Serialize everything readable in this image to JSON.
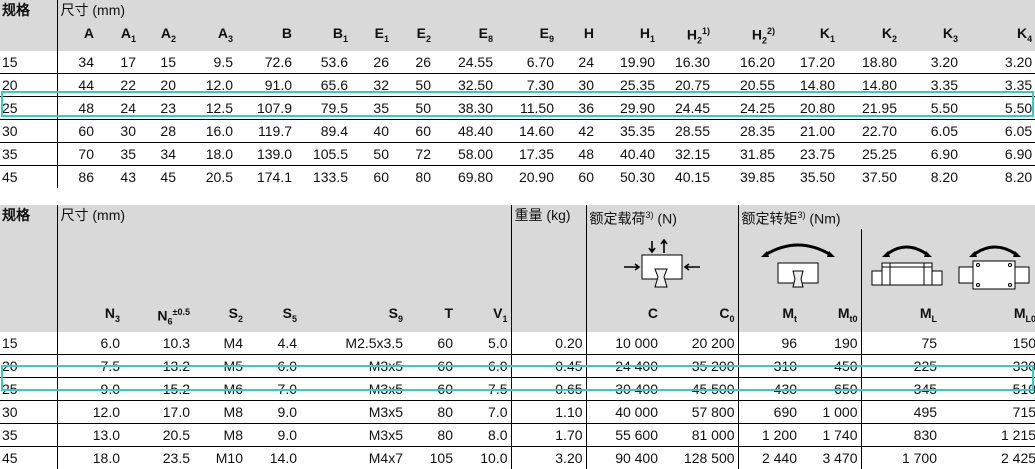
{
  "table1": {
    "size_label": "规格",
    "dim_label": "尺寸 (mm)",
    "columns": [
      "A",
      "A",
      "A",
      "A",
      "B",
      "B",
      "E",
      "E",
      "E",
      "E",
      "H",
      "H",
      "H",
      "H",
      "K",
      "K",
      "K",
      "K"
    ],
    "column_subs": [
      "",
      "1",
      "2",
      "3",
      "",
      "1",
      "1",
      "2",
      "8",
      "9",
      "",
      "1",
      "2",
      "2",
      "1",
      "2",
      "3",
      "4"
    ],
    "column_sups": [
      "",
      "",
      "",
      "",
      "",
      "",
      "",
      "",
      "",
      "",
      "",
      "",
      "1)",
      "2)",
      "",
      "",
      "",
      ""
    ],
    "rows": [
      [
        "15",
        "34",
        "17",
        "15",
        "9.5",
        "72.6",
        "53.6",
        "26",
        "26",
        "24.55",
        "6.70",
        "24",
        "19.90",
        "16.30",
        "16.20",
        "17.20",
        "18.80",
        "3.20",
        "3.20"
      ],
      [
        "20",
        "44",
        "22",
        "20",
        "12.0",
        "91.0",
        "65.6",
        "32",
        "50",
        "32.50",
        "7.30",
        "30",
        "25.35",
        "20.75",
        "20.55",
        "14.80",
        "14.80",
        "3.35",
        "3.35"
      ],
      [
        "25",
        "48",
        "24",
        "23",
        "12.5",
        "107.9",
        "79.5",
        "35",
        "50",
        "38.30",
        "11.50",
        "36",
        "29.90",
        "24.45",
        "24.25",
        "20.80",
        "21.95",
        "5.50",
        "5.50"
      ],
      [
        "30",
        "60",
        "30",
        "28",
        "16.0",
        "119.7",
        "89.4",
        "40",
        "60",
        "48.40",
        "14.60",
        "42",
        "35.35",
        "28.55",
        "28.35",
        "21.00",
        "22.70",
        "6.05",
        "6.05"
      ],
      [
        "35",
        "70",
        "35",
        "34",
        "18.0",
        "139.0",
        "105.5",
        "50",
        "72",
        "58.00",
        "17.35",
        "48",
        "40.40",
        "32.15",
        "31.85",
        "23.75",
        "25.25",
        "6.90",
        "6.90"
      ],
      [
        "45",
        "86",
        "43",
        "45",
        "20.5",
        "174.1",
        "133.5",
        "60",
        "80",
        "69.80",
        "20.90",
        "60",
        "50.30",
        "40.15",
        "39.85",
        "35.50",
        "37.50",
        "8.20",
        "8.20"
      ]
    ]
  },
  "table2": {
    "size_label": "规格",
    "dim_label": "尺寸 (mm)",
    "weight_label": "重量 (kg)",
    "load_label": "额定载荷",
    "load_unit": "(N)",
    "moment_label": "额定转矩",
    "moment_unit": "(Nm)",
    "footnote": "3)",
    "columns": [
      "N",
      "N",
      "S",
      "S",
      "S",
      "T",
      "V",
      "",
      "C",
      "C",
      "M",
      "M",
      "M",
      "M"
    ],
    "column_subs": [
      "3",
      "6",
      "2",
      "5",
      "9",
      "",
      "1",
      "",
      "",
      "0",
      "t",
      "t0",
      "L",
      "L0"
    ],
    "column_sups": [
      "",
      "±0.5",
      "",
      "",
      "",
      "",
      "",
      "",
      "",
      "",
      "",
      "",
      "",
      ""
    ],
    "rows": [
      [
        "15",
        "6.0",
        "10.3",
        "M4",
        "4.4",
        "M2.5x3.5",
        "60",
        "5.0",
        "0.20",
        "10 000",
        "20 200",
        "96",
        "190",
        "75",
        "150"
      ],
      [
        "20",
        "7.5",
        "13.2",
        "M5",
        "6.0",
        "M3x5",
        "60",
        "6.0",
        "0.45",
        "24 400",
        "35 200",
        "310",
        "450",
        "225",
        "330"
      ],
      [
        "25",
        "9.0",
        "15.2",
        "M6",
        "7.0",
        "M3x5",
        "60",
        "7.5",
        "0.65",
        "30 400",
        "45 500",
        "430",
        "650",
        "345",
        "510"
      ],
      [
        "30",
        "12.0",
        "17.0",
        "M8",
        "9.0",
        "M3x5",
        "80",
        "7.0",
        "1.10",
        "40 000",
        "57 800",
        "690",
        "1 000",
        "495",
        "715"
      ],
      [
        "35",
        "13.0",
        "20.5",
        "M8",
        "9.0",
        "M3x5",
        "80",
        "8.0",
        "1.70",
        "55 600",
        "81 000",
        "1 200",
        "1 740",
        "830",
        "1 215"
      ],
      [
        "45",
        "18.0",
        "23.5",
        "M10",
        "14.0",
        "M4x7",
        "105",
        "10.0",
        "3.20",
        "90 400",
        "128 500",
        "2 440",
        "3 470",
        "1 700",
        "2 425"
      ]
    ]
  },
  "highlight_color": "#33cccc",
  "icons": [
    "load-direction-icon",
    "moment-torsion-icon",
    "moment-longitudinal-side-icon",
    "moment-longitudinal-top-icon"
  ]
}
